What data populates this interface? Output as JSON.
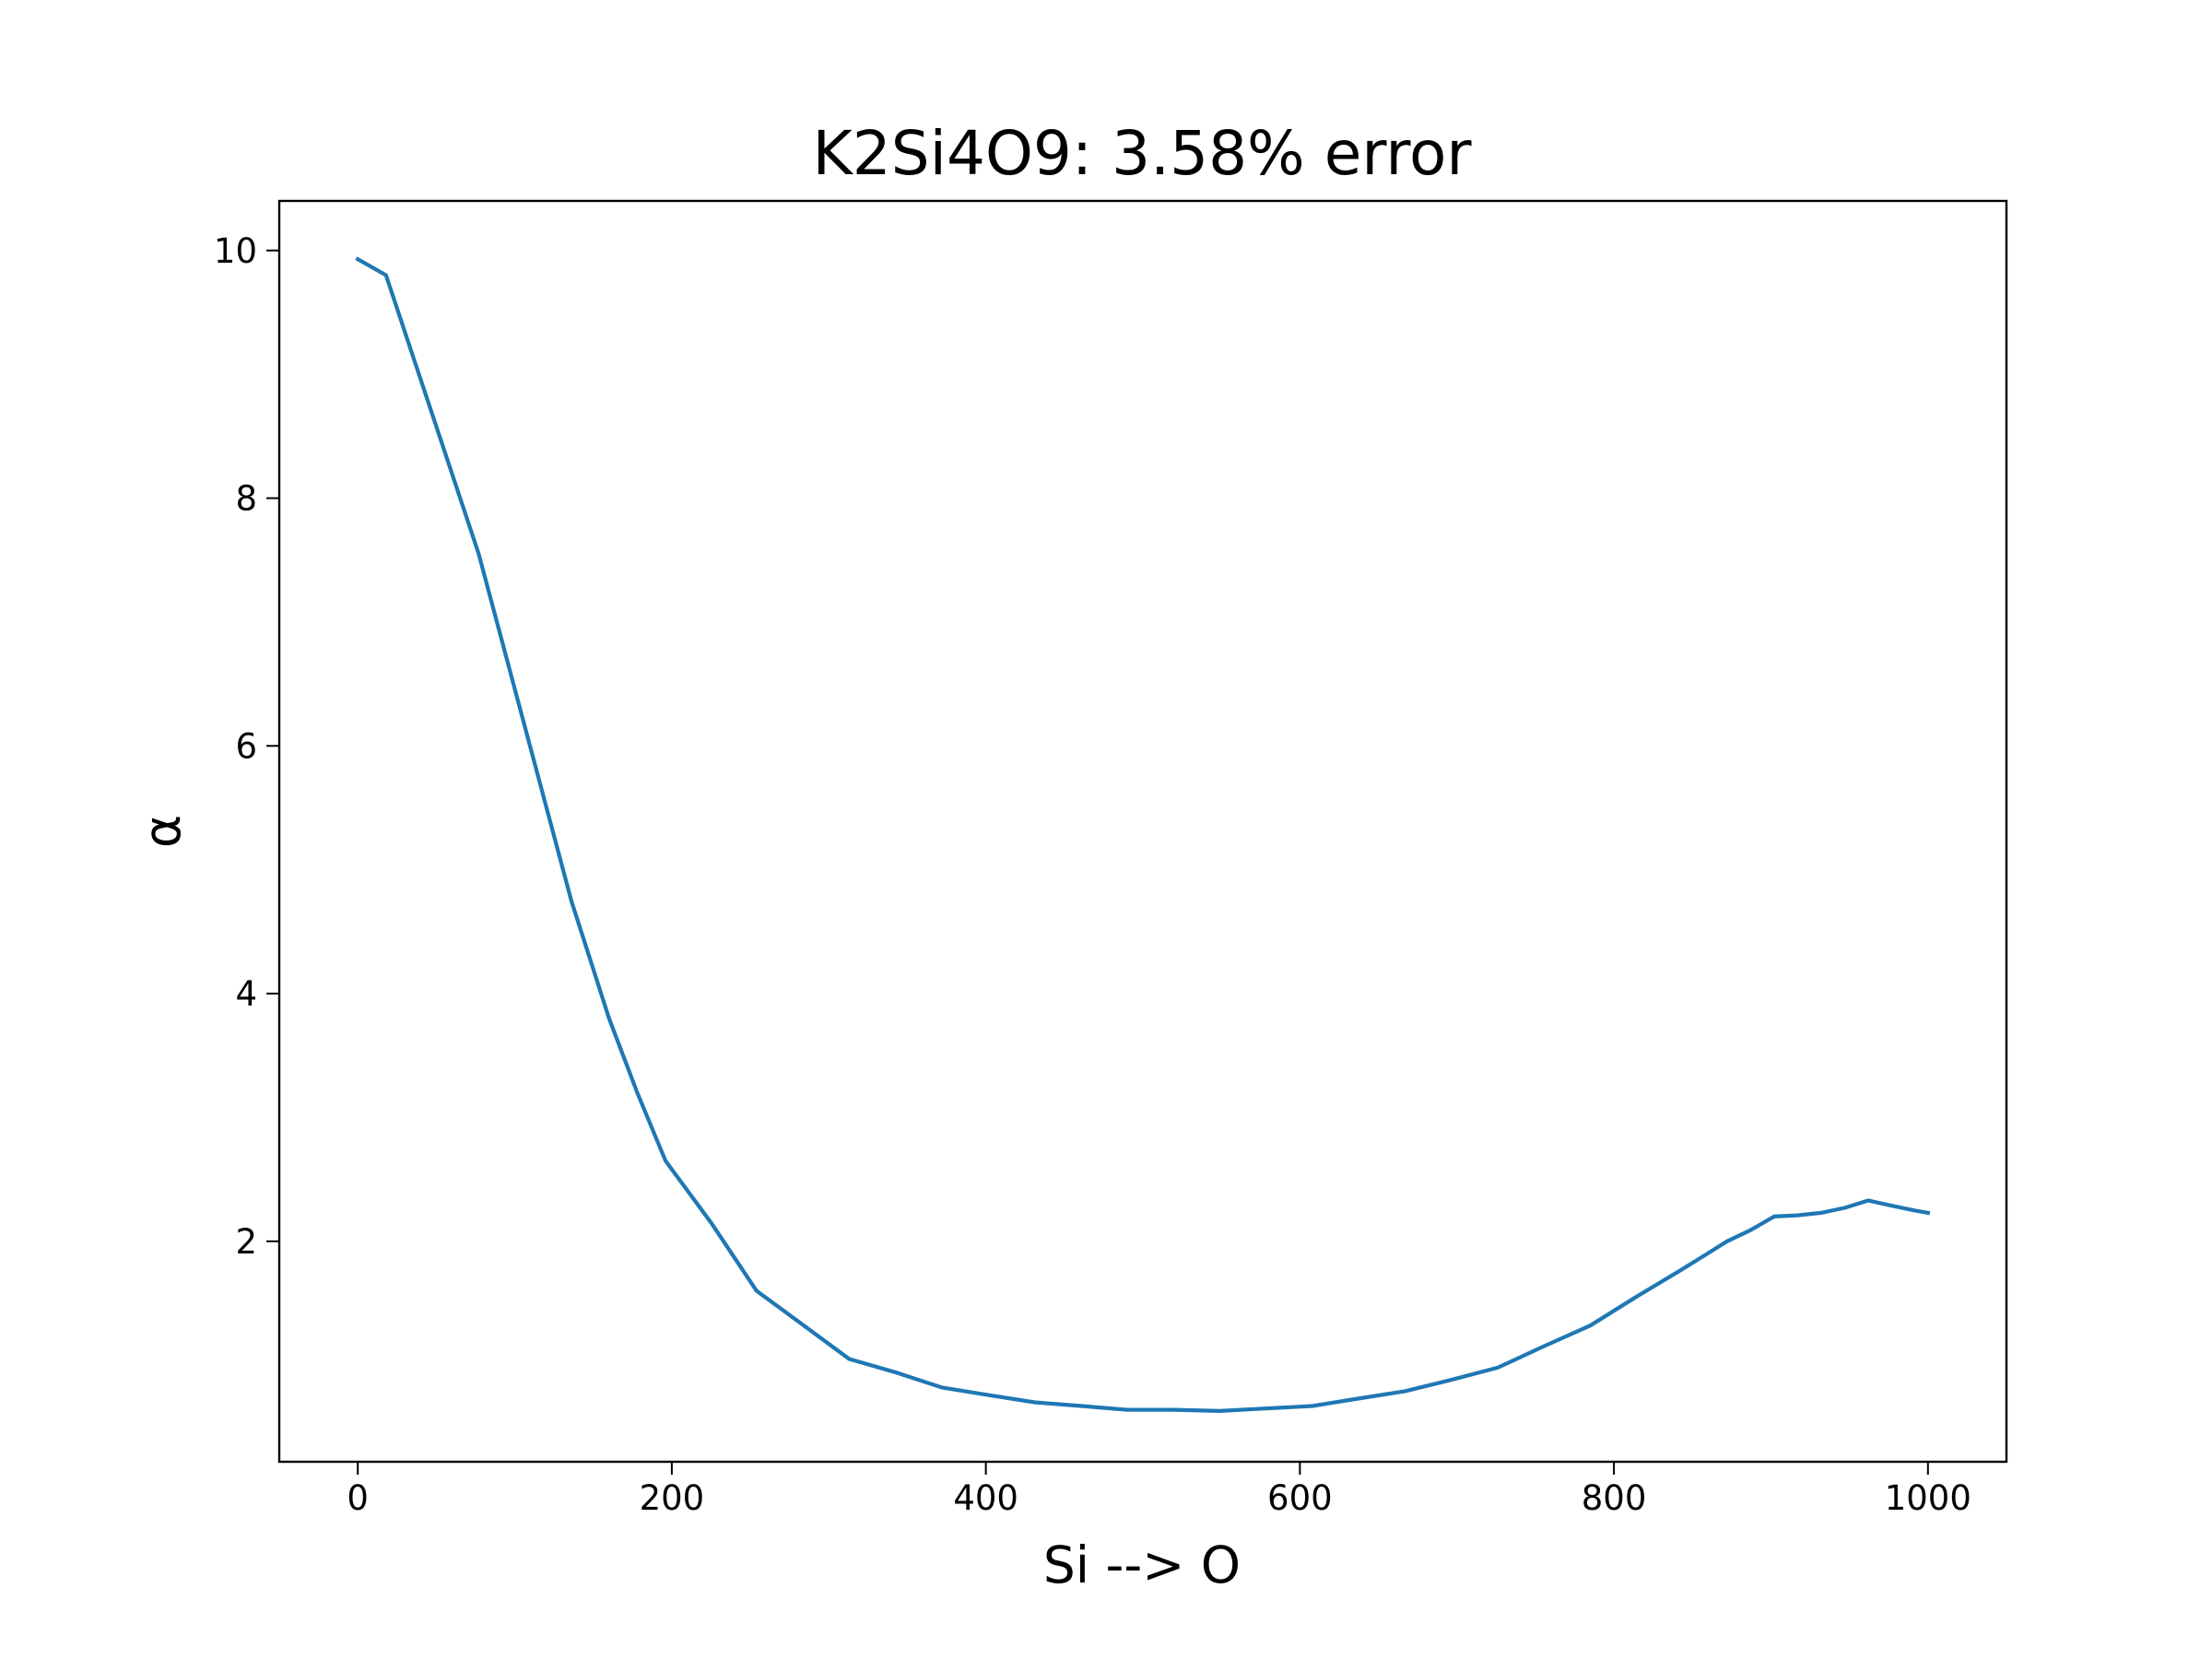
{
  "chart_data": {
    "type": "line",
    "title": "K2Si4O9: 3.58% error",
    "xlabel": "Si --> O",
    "ylabel": "α",
    "xlim": [
      -50,
      1050
    ],
    "ylim": [
      0.22,
      10.4
    ],
    "xticks": [
      0,
      200,
      400,
      600,
      800,
      1000
    ],
    "xtick_labels": [
      "0",
      "200",
      "400",
      "600",
      "800",
      "1000"
    ],
    "yticks": [
      2,
      4,
      6,
      8,
      10
    ],
    "ytick_labels": [
      "2",
      "4",
      "6",
      "8",
      "10"
    ],
    "grid": false,
    "legend": "none",
    "series": [
      {
        "color": "#1f77b4",
        "x": [
          0,
          18,
          77,
          136,
          160,
          178,
          196,
          225,
          254,
          283,
          313,
          343,
          372,
          401,
          431,
          461,
          490,
          520,
          549,
          578,
          608,
          637,
          667,
          696,
          726,
          755,
          785,
          814,
          843,
          857,
          872,
          887,
          902,
          917,
          932,
          947,
          962,
          976,
          991,
          1000
        ],
        "y": [
          9.93,
          9.8,
          7.55,
          4.75,
          3.8,
          3.2,
          2.65,
          2.15,
          1.6,
          1.33,
          1.05,
          0.94,
          0.82,
          0.76,
          0.7,
          0.67,
          0.64,
          0.64,
          0.63,
          0.65,
          0.67,
          0.73,
          0.79,
          0.88,
          0.98,
          1.15,
          1.32,
          1.55,
          1.77,
          1.88,
          2.0,
          2.09,
          2.2,
          2.21,
          2.23,
          2.27,
          2.33,
          2.29,
          2.25,
          2.23
        ]
      }
    ]
  }
}
